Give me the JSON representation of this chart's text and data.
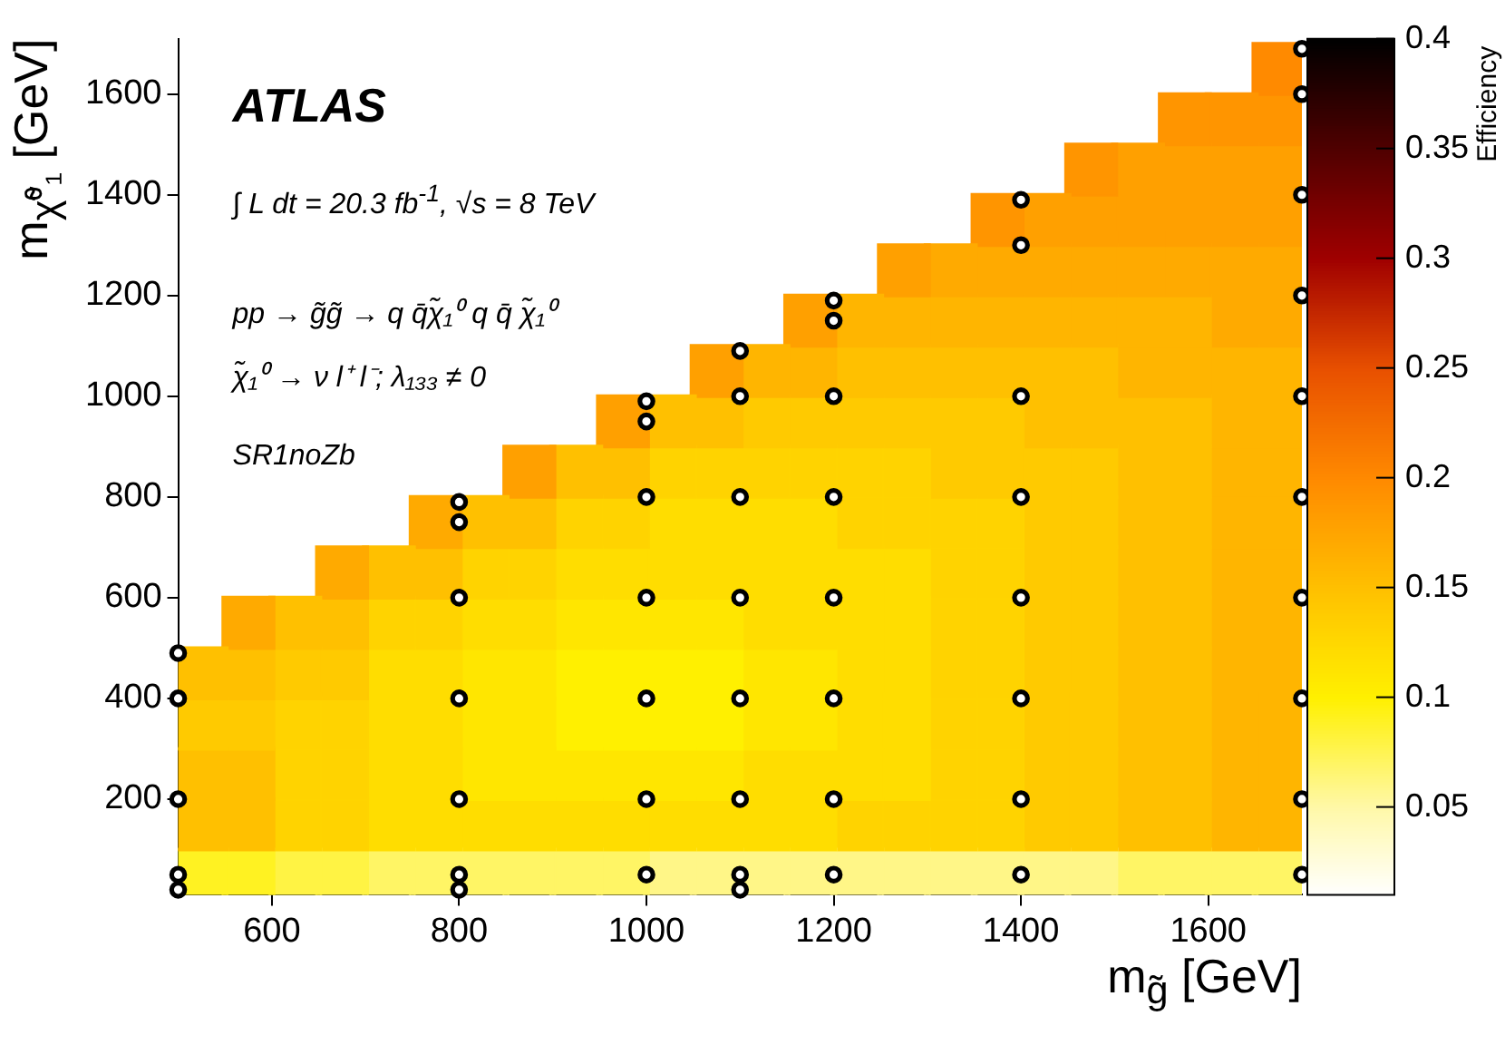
{
  "chart_data": {
    "type": "scatter",
    "xlabel": "m$_{g̃}$ [GeV]",
    "ylabel": "m$_{χ̃⁰₁}$ [GeV]",
    "clabel": "Efficiency",
    "xlim": [
      500,
      1700
    ],
    "xticks": [
      600,
      800,
      1000,
      1200,
      1400,
      1600
    ],
    "ylim": [
      10,
      1710
    ],
    "yticks": [
      200,
      400,
      600,
      800,
      1000,
      1200,
      1400,
      1600
    ],
    "clim": [
      0.01,
      0.4
    ],
    "cticks": [
      0.05,
      0.1,
      0.15,
      0.2,
      0.25,
      0.3,
      0.35,
      0.4
    ],
    "grid": false,
    "annotations": [
      "ATLAS",
      "∫ L dt = 20.3 fb$^{-1}$, √s = 8 TeV",
      "pp → g̃g̃ → q q̄χ̃₁⁰ q q̄ χ̃₁⁰",
      "χ̃₁⁰ → ν l⁺ l⁻;  λ₁₃₃ ≠ 0",
      "SR1noZb"
    ],
    "series": [
      {
        "marker": "square",
        "colors": [
          "#fff222",
          "#ffc000",
          "#ffc000",
          "#ffca00",
          "#ffc000"
        ],
        "x": [
          525,
          525,
          525,
          525,
          525
        ],
        "values": [
          50,
          150,
          250,
          350,
          450
        ],
        "cvalues": [
          0.09,
          0.15,
          0.15,
          0.14,
          0.15
        ]
      },
      {
        "marker": "square",
        "colors": [
          "#fff222",
          "#ffc000",
          "#ffc000",
          "#ffca00",
          "#ffc000",
          "#ffaa00"
        ],
        "x": [
          575,
          575,
          575,
          575,
          575,
          575
        ],
        "values": [
          50,
          150,
          250,
          350,
          450,
          550
        ],
        "cvalues": [
          0.09,
          0.15,
          0.15,
          0.14,
          0.15,
          0.17
        ]
      },
      {
        "marker": "square",
        "colors": [
          "#fff344",
          "#ffd400",
          "#ffd400",
          "#ffd400",
          "#ffca00",
          "#ffc000"
        ],
        "x": [
          625,
          625,
          625,
          625,
          625,
          625
        ],
        "values": [
          50,
          150,
          250,
          350,
          450,
          550
        ],
        "cvalues": [
          0.08,
          0.13,
          0.13,
          0.13,
          0.14,
          0.15
        ]
      },
      {
        "marker": "square",
        "colors": [
          "#fff344",
          "#ffd400",
          "#ffd400",
          "#ffd400",
          "#ffca00",
          "#ffc000",
          "#ffaa00"
        ],
        "x": [
          675,
          675,
          675,
          675,
          675,
          675,
          675
        ],
        "values": [
          50,
          150,
          250,
          350,
          450,
          550,
          650
        ],
        "cvalues": [
          0.08,
          0.13,
          0.13,
          0.13,
          0.14,
          0.15,
          0.17
        ]
      },
      {
        "marker": "square",
        "colors": [
          "#fff565",
          "#ffdd00",
          "#ffdd00",
          "#ffdd00",
          "#ffdd00",
          "#ffd400",
          "#ffc000"
        ],
        "x": [
          725,
          725,
          725,
          725,
          725,
          725,
          725
        ],
        "values": [
          50,
          150,
          250,
          350,
          450,
          550,
          650
        ],
        "cvalues": [
          0.07,
          0.12,
          0.12,
          0.12,
          0.12,
          0.13,
          0.15
        ]
      },
      {
        "marker": "square",
        "colors": [
          "#fff565",
          "#ffdd00",
          "#ffdd00",
          "#ffdd00",
          "#ffdd00",
          "#ffd400",
          "#ffc000",
          "#ffaa00"
        ],
        "x": [
          775,
          775,
          775,
          775,
          775,
          775,
          775,
          775
        ],
        "values": [
          50,
          150,
          250,
          350,
          450,
          550,
          650,
          750
        ],
        "cvalues": [
          0.07,
          0.12,
          0.12,
          0.12,
          0.12,
          0.13,
          0.15,
          0.17
        ]
      },
      {
        "marker": "square",
        "colors": [
          "#fff565",
          "#ffdd00",
          "#ffe600",
          "#ffe600",
          "#ffe600",
          "#ffdd00",
          "#ffd400",
          "#ffc000"
        ],
        "x": [
          825,
          825,
          825,
          825,
          825,
          825,
          825,
          825
        ],
        "values": [
          50,
          150,
          250,
          350,
          450,
          550,
          650,
          750
        ],
        "cvalues": [
          0.07,
          0.12,
          0.11,
          0.11,
          0.11,
          0.12,
          0.13,
          0.15
        ]
      },
      {
        "marker": "square",
        "colors": [
          "#fff565",
          "#ffdd00",
          "#ffe600",
          "#ffe600",
          "#ffe600",
          "#ffdd00",
          "#ffd400",
          "#ffc000",
          "#ffa000"
        ],
        "x": [
          875,
          875,
          875,
          875,
          875,
          875,
          875,
          875,
          875
        ],
        "values": [
          50,
          150,
          250,
          350,
          450,
          550,
          650,
          750,
          850
        ],
        "cvalues": [
          0.07,
          0.12,
          0.11,
          0.11,
          0.11,
          0.12,
          0.13,
          0.15,
          0.18
        ]
      },
      {
        "marker": "square",
        "colors": [
          "#fff565",
          "#ffdd00",
          "#ffe600",
          "#fff000",
          "#fff000",
          "#ffe600",
          "#ffdd00",
          "#ffd400",
          "#ffc000"
        ],
        "x": [
          925,
          925,
          925,
          925,
          925,
          925,
          925,
          925,
          925
        ],
        "values": [
          50,
          150,
          250,
          350,
          450,
          550,
          650,
          750,
          850
        ],
        "cvalues": [
          0.07,
          0.12,
          0.11,
          0.1,
          0.1,
          0.11,
          0.12,
          0.13,
          0.15
        ]
      },
      {
        "marker": "square",
        "colors": [
          "#fff565",
          "#ffdd00",
          "#ffe600",
          "#fff000",
          "#fff000",
          "#ffe600",
          "#ffdd00",
          "#ffd400",
          "#ffc000",
          "#ffa000"
        ],
        "x": [
          975,
          975,
          975,
          975,
          975,
          975,
          975,
          975,
          975,
          975
        ],
        "values": [
          50,
          150,
          250,
          350,
          450,
          550,
          650,
          750,
          850,
          950
        ],
        "cvalues": [
          0.07,
          0.12,
          0.11,
          0.1,
          0.1,
          0.11,
          0.12,
          0.13,
          0.15,
          0.18
        ]
      },
      {
        "marker": "square",
        "colors": [
          "#fff687",
          "#ffdd00",
          "#ffe600",
          "#fff000",
          "#fff000",
          "#ffe600",
          "#ffdd00",
          "#ffdd00",
          "#ffd400",
          "#ffc000"
        ],
        "x": [
          1025,
          1025,
          1025,
          1025,
          1025,
          1025,
          1025,
          1025,
          1025,
          1025
        ],
        "values": [
          50,
          150,
          250,
          350,
          450,
          550,
          650,
          750,
          850,
          950
        ],
        "cvalues": [
          0.06,
          0.12,
          0.11,
          0.1,
          0.1,
          0.11,
          0.12,
          0.12,
          0.13,
          0.15
        ]
      },
      {
        "marker": "square",
        "colors": [
          "#fff687",
          "#ffdd00",
          "#ffe600",
          "#fff000",
          "#fff000",
          "#ffe600",
          "#ffdd00",
          "#ffdd00",
          "#ffd400",
          "#ffc000",
          "#ffa000"
        ],
        "x": [
          1075,
          1075,
          1075,
          1075,
          1075,
          1075,
          1075,
          1075,
          1075,
          1075,
          1075
        ],
        "values": [
          50,
          150,
          250,
          350,
          450,
          550,
          650,
          750,
          850,
          950,
          1050
        ],
        "cvalues": [
          0.06,
          0.12,
          0.11,
          0.1,
          0.1,
          0.11,
          0.12,
          0.12,
          0.13,
          0.15,
          0.18
        ]
      },
      {
        "marker": "square",
        "colors": [
          "#fff687",
          "#ffdd00",
          "#ffdd00",
          "#ffe600",
          "#ffe600",
          "#ffdd00",
          "#ffdd00",
          "#ffdd00",
          "#ffd400",
          "#ffca00",
          "#ffb500"
        ],
        "x": [
          1125,
          1125,
          1125,
          1125,
          1125,
          1125,
          1125,
          1125,
          1125,
          1125,
          1125
        ],
        "values": [
          50,
          150,
          250,
          350,
          450,
          550,
          650,
          750,
          850,
          950,
          1050
        ],
        "cvalues": [
          0.06,
          0.12,
          0.12,
          0.11,
          0.11,
          0.12,
          0.12,
          0.12,
          0.13,
          0.14,
          0.16
        ]
      },
      {
        "marker": "square",
        "colors": [
          "#fff687",
          "#ffdd00",
          "#ffdd00",
          "#ffe600",
          "#ffe600",
          "#ffdd00",
          "#ffdd00",
          "#ffdd00",
          "#ffd400",
          "#ffca00",
          "#ffb500",
          "#ffa000"
        ],
        "x": [
          1175,
          1175,
          1175,
          1175,
          1175,
          1175,
          1175,
          1175,
          1175,
          1175,
          1175,
          1175
        ],
        "values": [
          50,
          150,
          250,
          350,
          450,
          550,
          650,
          750,
          850,
          950,
          1050,
          1150
        ],
        "cvalues": [
          0.06,
          0.12,
          0.12,
          0.11,
          0.11,
          0.12,
          0.12,
          0.12,
          0.13,
          0.14,
          0.16,
          0.18
        ]
      },
      {
        "marker": "square",
        "colors": [
          "#fff687",
          "#ffd400",
          "#ffdd00",
          "#ffdd00",
          "#ffdd00",
          "#ffdd00",
          "#ffdd00",
          "#ffd400",
          "#ffd400",
          "#ffca00",
          "#ffc000",
          "#ffb500"
        ],
        "x": [
          1225,
          1225,
          1225,
          1225,
          1225,
          1225,
          1225,
          1225,
          1225,
          1225,
          1225,
          1225
        ],
        "values": [
          50,
          150,
          250,
          350,
          450,
          550,
          650,
          750,
          850,
          950,
          1050,
          1150
        ],
        "cvalues": [
          0.06,
          0.13,
          0.12,
          0.12,
          0.12,
          0.12,
          0.12,
          0.13,
          0.13,
          0.14,
          0.15,
          0.16
        ]
      },
      {
        "marker": "square",
        "colors": [
          "#fff687",
          "#ffd400",
          "#ffdd00",
          "#ffdd00",
          "#ffdd00",
          "#ffdd00",
          "#ffdd00",
          "#ffd400",
          "#ffd400",
          "#ffca00",
          "#ffc000",
          "#ffb500",
          "#ffa000"
        ],
        "x": [
          1275,
          1275,
          1275,
          1275,
          1275,
          1275,
          1275,
          1275,
          1275,
          1275,
          1275,
          1275,
          1275
        ],
        "values": [
          50,
          150,
          250,
          350,
          450,
          550,
          650,
          750,
          850,
          950,
          1050,
          1150,
          1250
        ],
        "cvalues": [
          0.06,
          0.13,
          0.12,
          0.12,
          0.12,
          0.12,
          0.12,
          0.13,
          0.13,
          0.14,
          0.15,
          0.16,
          0.18
        ]
      },
      {
        "marker": "square",
        "colors": [
          "#fff687",
          "#ffd400",
          "#ffd400",
          "#ffd400",
          "#ffd400",
          "#ffd400",
          "#ffd400",
          "#ffd400",
          "#ffca00",
          "#ffca00",
          "#ffc000",
          "#ffb500",
          "#ffaa00"
        ],
        "x": [
          1325,
          1325,
          1325,
          1325,
          1325,
          1325,
          1325,
          1325,
          1325,
          1325,
          1325,
          1325,
          1325
        ],
        "values": [
          50,
          150,
          250,
          350,
          450,
          550,
          650,
          750,
          850,
          950,
          1050,
          1150,
          1250
        ],
        "cvalues": [
          0.06,
          0.13,
          0.13,
          0.13,
          0.13,
          0.13,
          0.13,
          0.13,
          0.14,
          0.14,
          0.15,
          0.16,
          0.17
        ]
      },
      {
        "marker": "square",
        "colors": [
          "#fff687",
          "#ffd400",
          "#ffd400",
          "#ffd400",
          "#ffd400",
          "#ffd400",
          "#ffd400",
          "#ffd400",
          "#ffca00",
          "#ffca00",
          "#ffc000",
          "#ffb500",
          "#ffaa00",
          "#ff9500"
        ],
        "x": [
          1375,
          1375,
          1375,
          1375,
          1375,
          1375,
          1375,
          1375,
          1375,
          1375,
          1375,
          1375,
          1375,
          1375
        ],
        "values": [
          50,
          150,
          250,
          350,
          450,
          550,
          650,
          750,
          850,
          950,
          1050,
          1150,
          1250,
          1350
        ],
        "cvalues": [
          0.06,
          0.13,
          0.13,
          0.13,
          0.13,
          0.13,
          0.13,
          0.13,
          0.14,
          0.14,
          0.15,
          0.16,
          0.17,
          0.19
        ]
      },
      {
        "marker": "square",
        "colors": [
          "#fff687",
          "#ffca00",
          "#ffca00",
          "#ffca00",
          "#ffca00",
          "#ffca00",
          "#ffca00",
          "#ffca00",
          "#ffca00",
          "#ffc000",
          "#ffc000",
          "#ffb500",
          "#ffaa00",
          "#ffa000"
        ],
        "x": [
          1425,
          1425,
          1425,
          1425,
          1425,
          1425,
          1425,
          1425,
          1425,
          1425,
          1425,
          1425,
          1425,
          1425
        ],
        "values": [
          50,
          150,
          250,
          350,
          450,
          550,
          650,
          750,
          850,
          950,
          1050,
          1150,
          1250,
          1350
        ],
        "cvalues": [
          0.06,
          0.14,
          0.14,
          0.14,
          0.14,
          0.14,
          0.14,
          0.14,
          0.14,
          0.15,
          0.15,
          0.16,
          0.17,
          0.18
        ]
      },
      {
        "marker": "square",
        "colors": [
          "#fff687",
          "#ffca00",
          "#ffca00",
          "#ffca00",
          "#ffca00",
          "#ffca00",
          "#ffca00",
          "#ffca00",
          "#ffca00",
          "#ffc000",
          "#ffc000",
          "#ffb500",
          "#ffaa00",
          "#ffa000",
          "#ff9500"
        ],
        "x": [
          1475,
          1475,
          1475,
          1475,
          1475,
          1475,
          1475,
          1475,
          1475,
          1475,
          1475,
          1475,
          1475,
          1475,
          1475
        ],
        "values": [
          50,
          150,
          250,
          350,
          450,
          550,
          650,
          750,
          850,
          950,
          1050,
          1150,
          1250,
          1350,
          1450
        ],
        "cvalues": [
          0.06,
          0.14,
          0.14,
          0.14,
          0.14,
          0.14,
          0.14,
          0.14,
          0.14,
          0.15,
          0.15,
          0.16,
          0.17,
          0.18,
          0.19
        ]
      },
      {
        "marker": "square",
        "colors": [
          "#fff565",
          "#ffc000",
          "#ffc000",
          "#ffc000",
          "#ffc000",
          "#ffc000",
          "#ffc000",
          "#ffc000",
          "#ffc000",
          "#ffc000",
          "#ffb500",
          "#ffb500",
          "#ffaa00",
          "#ffa000",
          "#ffa000"
        ],
        "x": [
          1525,
          1525,
          1525,
          1525,
          1525,
          1525,
          1525,
          1525,
          1525,
          1525,
          1525,
          1525,
          1525,
          1525,
          1525
        ],
        "values": [
          50,
          150,
          250,
          350,
          450,
          550,
          650,
          750,
          850,
          950,
          1050,
          1150,
          1250,
          1350,
          1450
        ],
        "cvalues": [
          0.07,
          0.15,
          0.15,
          0.15,
          0.15,
          0.15,
          0.15,
          0.15,
          0.15,
          0.15,
          0.16,
          0.16,
          0.17,
          0.18,
          0.18
        ]
      },
      {
        "marker": "square",
        "colors": [
          "#fff565",
          "#ffc000",
          "#ffc000",
          "#ffc000",
          "#ffc000",
          "#ffc000",
          "#ffc000",
          "#ffc000",
          "#ffc000",
          "#ffc000",
          "#ffb500",
          "#ffb500",
          "#ffaa00",
          "#ffa000",
          "#ffa000",
          "#ff9500"
        ],
        "x": [
          1575,
          1575,
          1575,
          1575,
          1575,
          1575,
          1575,
          1575,
          1575,
          1575,
          1575,
          1575,
          1575,
          1575,
          1575,
          1575
        ],
        "values": [
          50,
          150,
          250,
          350,
          450,
          550,
          650,
          750,
          850,
          950,
          1050,
          1150,
          1250,
          1350,
          1450,
          1550
        ],
        "cvalues": [
          0.07,
          0.15,
          0.15,
          0.15,
          0.15,
          0.15,
          0.15,
          0.15,
          0.15,
          0.15,
          0.16,
          0.16,
          0.17,
          0.18,
          0.18,
          0.19
        ]
      },
      {
        "marker": "square",
        "colors": [
          "#fff565",
          "#ffb500",
          "#ffb500",
          "#ffb500",
          "#ffb500",
          "#ffb500",
          "#ffb500",
          "#ffb500",
          "#ffb500",
          "#ffb500",
          "#ffb500",
          "#ffaa00",
          "#ffaa00",
          "#ffa000",
          "#ffa000",
          "#ff9500"
        ],
        "x": [
          1625,
          1625,
          1625,
          1625,
          1625,
          1625,
          1625,
          1625,
          1625,
          1625,
          1625,
          1625,
          1625,
          1625,
          1625,
          1625
        ],
        "values": [
          50,
          150,
          250,
          350,
          450,
          550,
          650,
          750,
          850,
          950,
          1050,
          1150,
          1250,
          1350,
          1450,
          1550
        ],
        "cvalues": [
          0.07,
          0.16,
          0.16,
          0.16,
          0.16,
          0.16,
          0.16,
          0.16,
          0.16,
          0.16,
          0.16,
          0.17,
          0.17,
          0.18,
          0.18,
          0.19
        ]
      },
      {
        "marker": "square",
        "colors": [
          "#fff565",
          "#ffb500",
          "#ffb500",
          "#ffb500",
          "#ffb500",
          "#ffb500",
          "#ffb500",
          "#ffb500",
          "#ffb500",
          "#ffb500",
          "#ffb500",
          "#ffaa00",
          "#ffaa00",
          "#ffa000",
          "#ffa000",
          "#ff9500",
          "#ff8a00"
        ],
        "x": [
          1675,
          1675,
          1675,
          1675,
          1675,
          1675,
          1675,
          1675,
          1675,
          1675,
          1675,
          1675,
          1675,
          1675,
          1675,
          1675,
          1675
        ],
        "values": [
          50,
          150,
          250,
          350,
          450,
          550,
          650,
          750,
          850,
          950,
          1050,
          1150,
          1250,
          1350,
          1450,
          1550,
          1650
        ],
        "cvalues": [
          0.07,
          0.16,
          0.16,
          0.16,
          0.16,
          0.16,
          0.16,
          0.16,
          0.16,
          0.16,
          0.16,
          0.17,
          0.17,
          0.18,
          0.18,
          0.19,
          0.2
        ]
      },
      {
        "marker": "circle",
        "color": "#000000",
        "x": [
          500,
          500,
          500,
          500,
          500,
          800,
          800,
          800,
          800,
          800,
          800,
          800,
          1000,
          1000,
          1000,
          1000,
          1000,
          1000,
          1000,
          1100,
          1100,
          1100,
          1100,
          1100,
          1100,
          1100,
          1100,
          1200,
          1200,
          1200,
          1200,
          1200,
          1200,
          1200,
          1200,
          1400,
          1400,
          1400,
          1400,
          1400,
          1400,
          1400,
          1400,
          1700,
          1700,
          1700,
          1700,
          1700,
          1700,
          1700,
          1700,
          1700,
          1700
        ],
        "values": [
          490,
          400,
          200,
          50,
          20,
          790,
          750,
          600,
          400,
          200,
          50,
          20,
          990,
          950,
          800,
          600,
          400,
          200,
          50,
          1090,
          1000,
          800,
          600,
          400,
          200,
          50,
          20,
          1190,
          1150,
          1000,
          800,
          600,
          400,
          200,
          50,
          1390,
          1300,
          1000,
          800,
          600,
          400,
          200,
          50,
          1690,
          1600,
          1400,
          1200,
          1000,
          800,
          600,
          400,
          200,
          50
        ]
      }
    ]
  }
}
